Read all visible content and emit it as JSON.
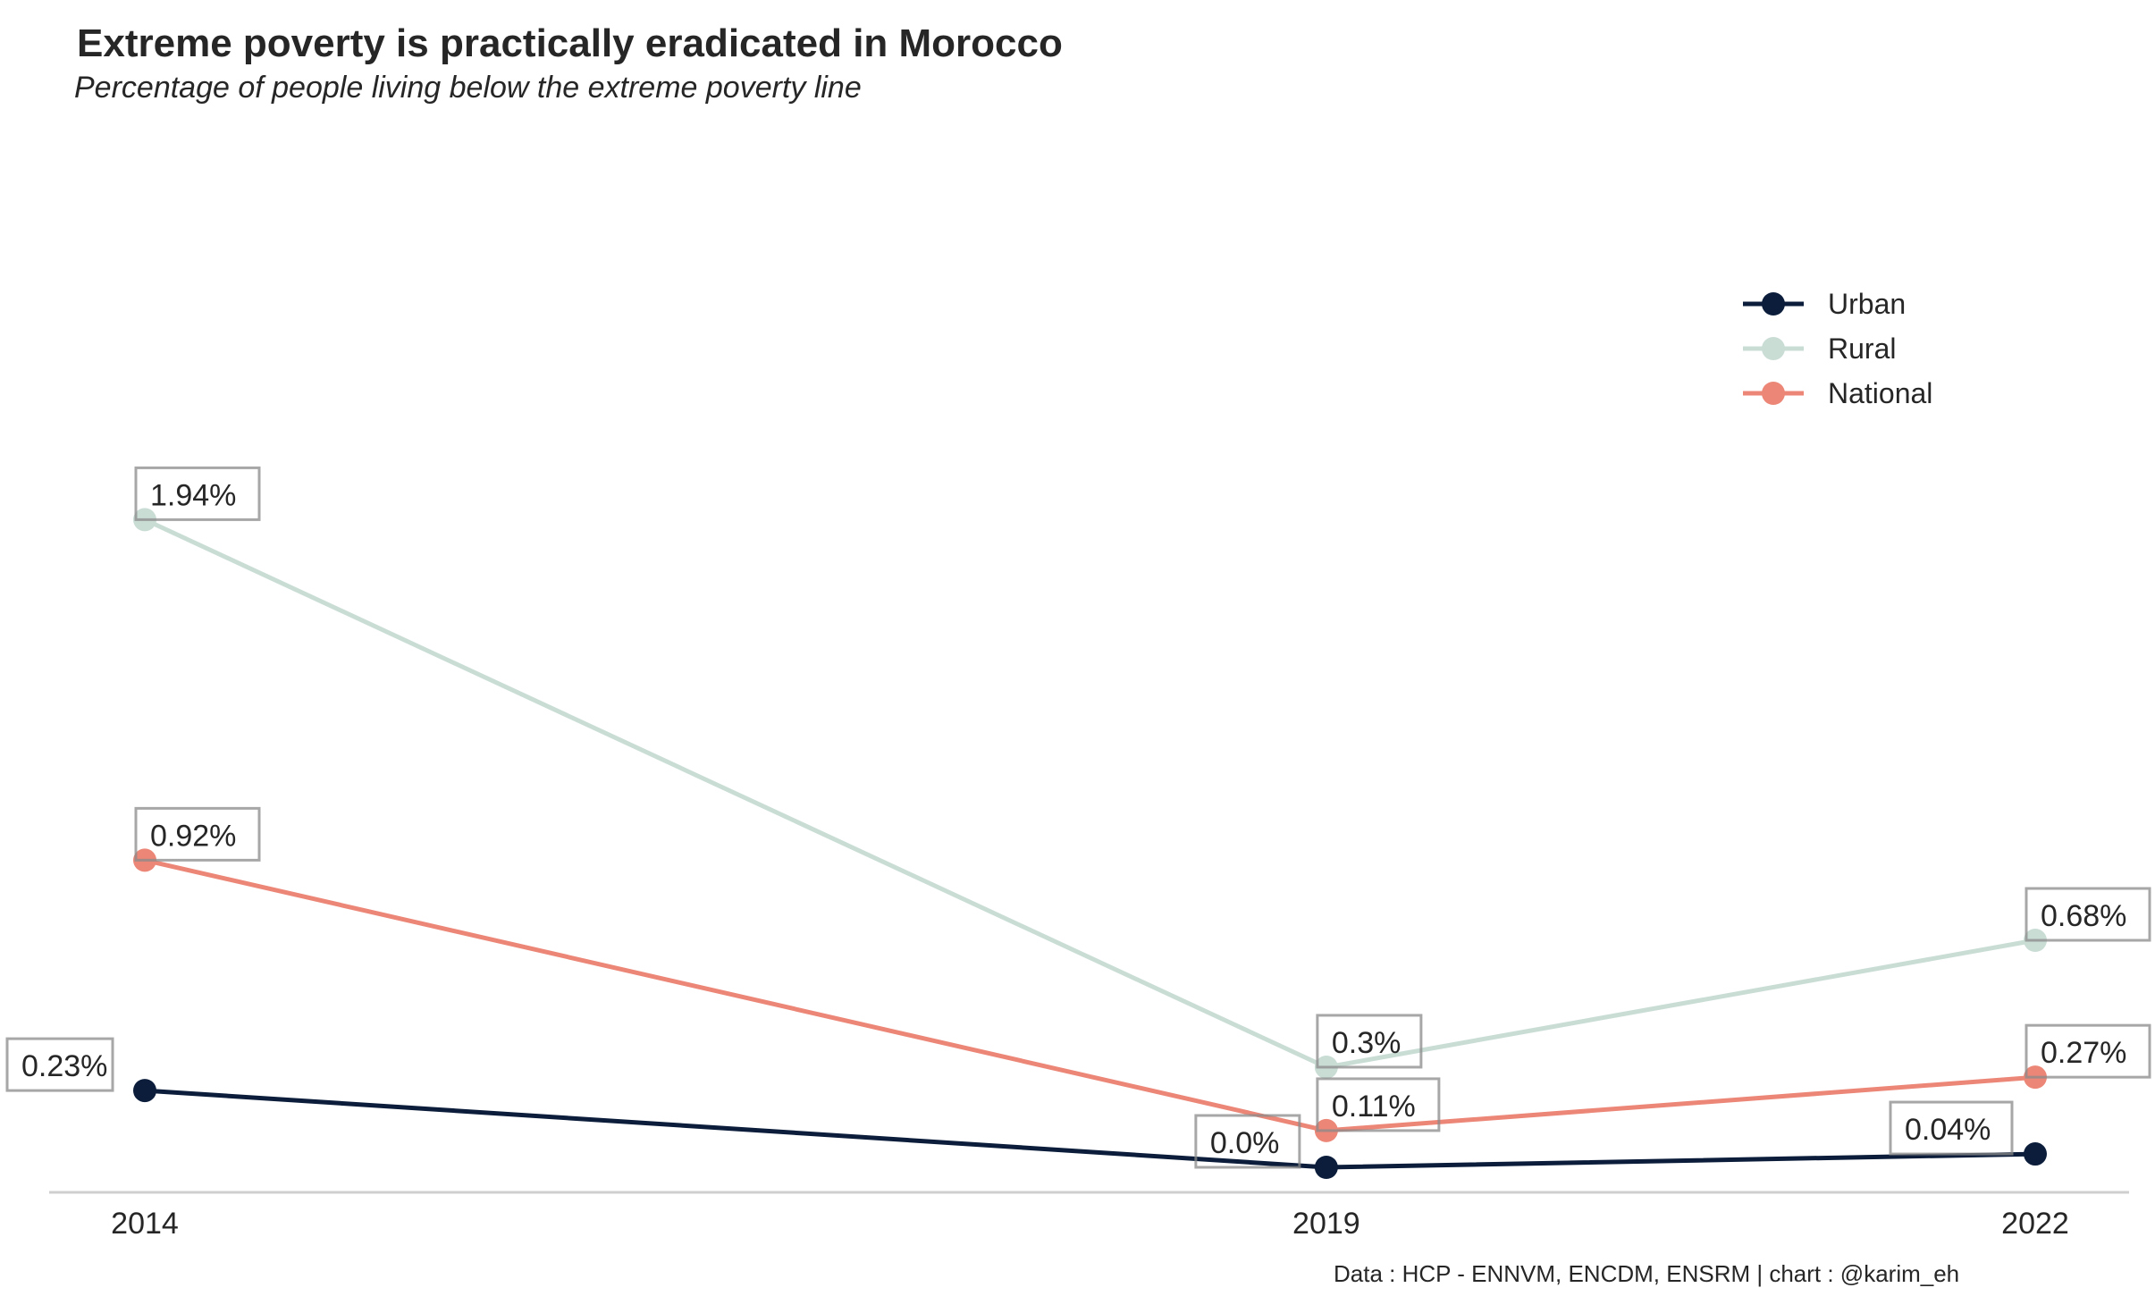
{
  "chart_data": {
    "type": "line",
    "title": "Extreme poverty is practically eradicated in Morocco",
    "subtitle": "Percentage of people living below the extreme poverty line",
    "source": "Data : HCP - ENNVM, ENCDM, ENSRM | chart : @karim_eh",
    "x": [
      "2014",
      "2019",
      "2022"
    ],
    "x_values": [
      2014,
      2019,
      2022
    ],
    "ylim": [
      0,
      4
    ],
    "grid": false,
    "legend_position": "top-right",
    "series": [
      {
        "name": "Urban",
        "color": "#0b1d3a",
        "values": [
          0.23,
          0.0,
          0.04
        ],
        "labels": [
          "0.23%",
          "0.0%",
          "0.04%"
        ]
      },
      {
        "name": "Rural",
        "color": "#c9ddd5",
        "values": [
          1.94,
          0.3,
          0.68
        ],
        "labels": [
          "1.94%",
          "0.3%",
          "0.68%"
        ]
      },
      {
        "name": "National",
        "color": "#ec8677",
        "values": [
          0.92,
          0.11,
          0.27
        ],
        "labels": [
          "0.92%",
          "0.11%",
          "0.27%"
        ]
      }
    ]
  }
}
